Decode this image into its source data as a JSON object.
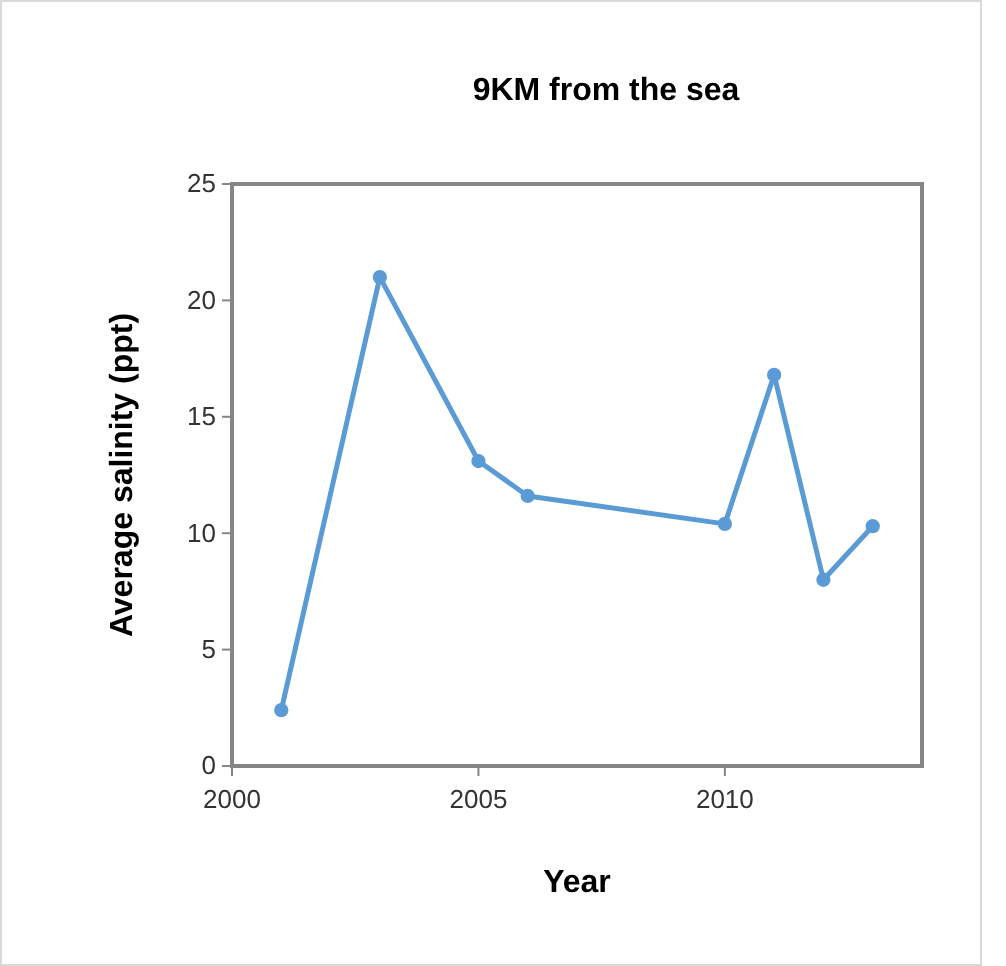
{
  "chart_data": {
    "type": "line",
    "title": "9KM from the sea",
    "xlabel": "Year",
    "ylabel": "Average salinity (ppt)",
    "x": [
      2001,
      2003,
      2005,
      2006,
      2010,
      2011,
      2012,
      2013
    ],
    "series": [
      {
        "color": "#5b9bd5",
        "values": [
          2.4,
          21,
          13.1,
          11.6,
          10.4,
          16.8,
          8.0,
          10.3
        ]
      }
    ],
    "xlim": [
      2000,
      2014
    ],
    "xticks": [
      2000,
      2005,
      2010
    ],
    "ylim": [
      0,
      25
    ],
    "yticks": [
      0,
      5,
      10,
      15,
      20,
      25
    ],
    "marker": "circle",
    "line_style": "solid"
  }
}
